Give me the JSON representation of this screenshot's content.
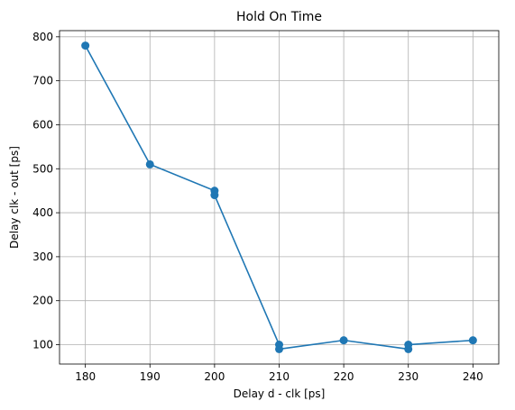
{
  "chart_data": {
    "type": "line",
    "title": "Hold On Time",
    "xlabel": "Delay d - clk [ps]",
    "ylabel": "Delay clk - out [ps]",
    "xlim": [
      176,
      244
    ],
    "ylim": [
      56,
      814
    ],
    "xticks": [
      180,
      190,
      200,
      210,
      220,
      230,
      240
    ],
    "yticks": [
      100,
      200,
      300,
      400,
      500,
      600,
      700,
      800
    ],
    "grid": true,
    "series": [
      {
        "color": "#1f77b4",
        "marker": "circle",
        "x": [
          180,
          190,
          200,
          200,
          210,
          210,
          220,
          230,
          230,
          240
        ],
        "y": [
          780,
          510,
          450,
          440,
          100,
          90,
          110,
          90,
          100,
          110
        ]
      }
    ]
  }
}
